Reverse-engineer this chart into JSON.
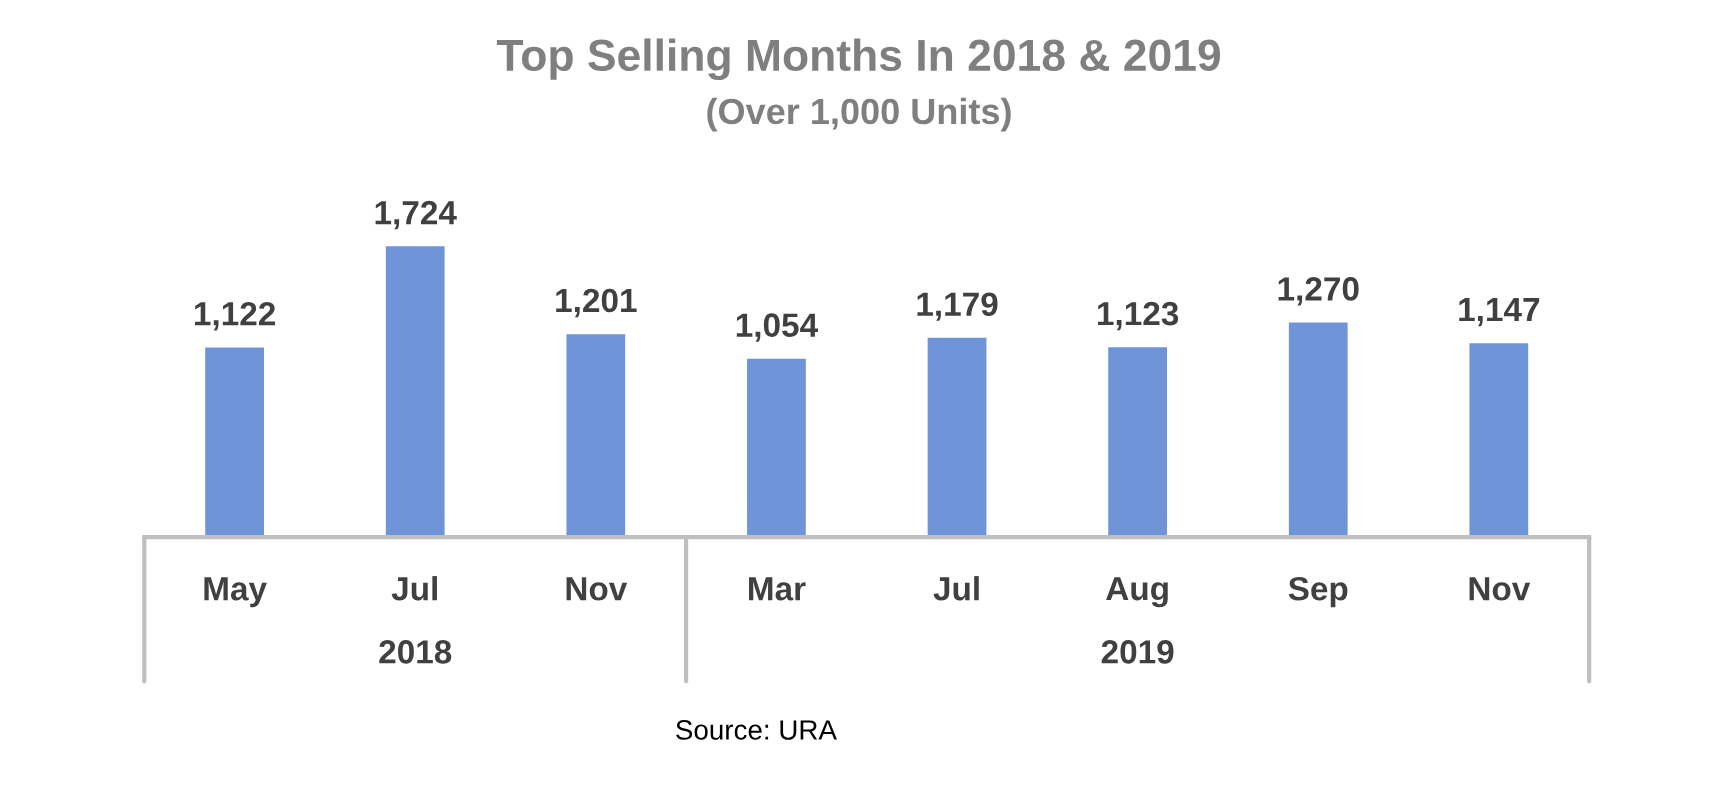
{
  "chart_data": {
    "type": "bar",
    "title": "Top Selling Months In 2018 & 2019",
    "subtitle": "(Over 1,000 Units)",
    "categories": [
      "May",
      "Jul",
      "Nov",
      "Mar",
      "Jul",
      "Aug",
      "Sep",
      "Nov"
    ],
    "values": [
      1122,
      1724,
      1201,
      1054,
      1179,
      1123,
      1270,
      1147
    ],
    "value_labels": [
      "1,122",
      "1,724",
      "1,201",
      "1,054",
      "1,179",
      "1,123",
      "1,270",
      "1,147"
    ],
    "color": "#6f95d8",
    "annotations": [
      "2018",
      "2019",
      "Source: URA"
    ]
  }
}
